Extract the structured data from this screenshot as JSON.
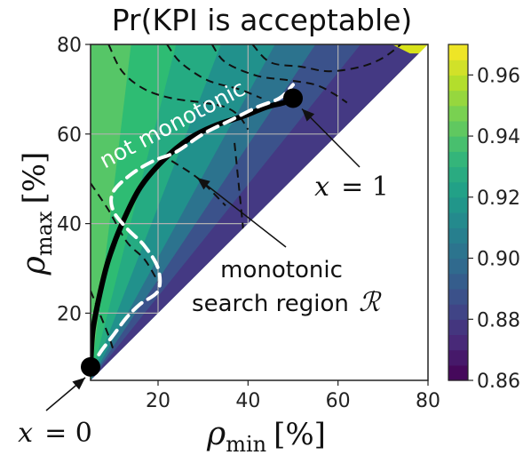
{
  "chart_data": {
    "type": "heatmap",
    "title": "Pr(KPI is acceptable)",
    "xlabel": {
      "symbol": "ρ",
      "subscript": "min",
      "unit": "[%]"
    },
    "ylabel": {
      "symbol": "ρ",
      "subscript": "max",
      "unit": "[%]"
    },
    "xlim": [
      5,
      80
    ],
    "ylim": [
      5,
      80
    ],
    "x_ticks": [
      "20",
      "40",
      "60",
      "80"
    ],
    "y_ticks": [
      "20",
      "40",
      "60",
      "80"
    ],
    "x_tick_values": [
      20,
      40,
      60,
      80
    ],
    "y_tick_values": [
      20,
      40,
      60,
      80
    ],
    "grid": true,
    "colorbar": {
      "ticks": [
        "0.86",
        "0.88",
        "0.90",
        "0.92",
        "0.94",
        "0.96"
      ],
      "tick_values": [
        0.86,
        0.88,
        0.9,
        0.92,
        0.94,
        0.96
      ],
      "range": [
        0.86,
        0.97
      ],
      "colormap": "viridis"
    },
    "contour_levels": [
      0.86,
      0.87,
      0.88,
      0.89,
      0.9,
      0.91,
      0.92,
      0.93,
      0.94,
      0.95,
      0.96,
      0.97
    ],
    "contour_bands": [
      {
        "level": 0.96,
        "color": "#b5de2b",
        "points": [
          [
            5,
            48
          ],
          [
            7,
            40
          ],
          [
            9,
            33
          ],
          [
            12,
            26
          ],
          [
            15,
            18
          ],
          [
            13,
            16
          ],
          [
            10,
            13
          ],
          [
            7,
            10
          ],
          [
            5,
            7
          ]
        ]
      },
      {
        "level": 0.95,
        "color": "#80d34b",
        "points": [
          [
            5,
            78
          ],
          [
            7,
            72
          ],
          [
            10,
            65
          ],
          [
            12,
            56
          ],
          [
            15,
            46
          ],
          [
            18,
            38
          ],
          [
            22,
            30
          ],
          [
            26,
            27
          ],
          [
            24,
            24
          ],
          [
            15,
            15
          ],
          [
            5,
            5
          ]
        ]
      },
      {
        "level": 0.94,
        "color": "#56c667",
        "points": [
          [
            5,
            80
          ],
          [
            14,
            80
          ],
          [
            17,
            74
          ],
          [
            21,
            66
          ],
          [
            26,
            58
          ],
          [
            31,
            49
          ],
          [
            35,
            42
          ],
          [
            36,
            36
          ],
          [
            5,
            5
          ]
        ]
      },
      {
        "level": 0.93,
        "color": "#2ebc73",
        "points": [
          [
            14,
            80
          ],
          [
            24,
            80
          ],
          [
            27,
            75
          ],
          [
            31,
            69
          ],
          [
            36,
            62
          ],
          [
            41,
            55
          ],
          [
            45,
            50
          ],
          [
            46,
            46
          ],
          [
            5,
            5
          ]
        ]
      },
      {
        "level": 0.92,
        "color": "#25ab82",
        "points": [
          [
            24,
            80
          ],
          [
            34,
            80
          ],
          [
            37,
            74
          ],
          [
            42,
            68
          ],
          [
            47,
            62
          ],
          [
            52,
            57
          ],
          [
            55,
            55
          ],
          [
            5,
            5
          ]
        ]
      },
      {
        "level": 0.91,
        "color": "#21918c",
        "points": [
          [
            34,
            80
          ],
          [
            46,
            80
          ],
          [
            49,
            76
          ],
          [
            53,
            71
          ],
          [
            58,
            66
          ],
          [
            62,
            62
          ],
          [
            5,
            5
          ]
        ]
      },
      {
        "level": 0.9,
        "color": "#2c738e",
        "points": [
          [
            46,
            80
          ],
          [
            55,
            80
          ],
          [
            58,
            77
          ],
          [
            62,
            73
          ],
          [
            67,
            71
          ],
          [
            69,
            69
          ],
          [
            5,
            5
          ]
        ]
      },
      {
        "level": 0.89,
        "color": "#3b528b",
        "points": [
          [
            55,
            80
          ],
          [
            65,
            80
          ],
          [
            68,
            78
          ],
          [
            72,
            76
          ],
          [
            74,
            74
          ],
          [
            5,
            5
          ]
        ]
      },
      {
        "level": 0.88,
        "color": "#443983",
        "points": [
          [
            65,
            80
          ],
          [
            72,
            80
          ],
          [
            76,
            78
          ],
          [
            78,
            78
          ],
          [
            5,
            5
          ]
        ]
      }
    ],
    "dashed_contours": [
      {
        "points": [
          [
            9,
            80
          ],
          [
            12,
            74
          ],
          [
            17,
            70
          ],
          [
            23,
            68
          ],
          [
            30,
            67
          ],
          [
            35,
            66
          ],
          [
            38,
            64
          ],
          [
            40,
            61
          ]
        ]
      },
      {
        "points": [
          [
            22,
            80
          ],
          [
            25,
            76
          ],
          [
            31,
            72
          ],
          [
            38,
            70
          ],
          [
            43,
            68
          ]
        ]
      },
      {
        "points": [
          [
            32,
            80
          ],
          [
            35,
            76
          ],
          [
            42,
            73
          ],
          [
            49,
            72
          ],
          [
            55,
            71
          ],
          [
            59,
            69
          ],
          [
            62,
            67
          ]
        ]
      },
      {
        "points": [
          [
            41,
            80
          ],
          [
            45,
            76
          ],
          [
            52,
            75
          ],
          [
            58,
            74
          ],
          [
            65,
            75
          ],
          [
            70,
            77
          ],
          [
            74,
            80
          ]
        ]
      },
      {
        "points": [
          [
            23,
            54
          ],
          [
            29,
            50
          ],
          [
            35,
            44
          ]
        ]
      },
      {
        "points": [
          [
            37,
            58
          ],
          [
            38,
            48
          ],
          [
            39,
            38
          ]
        ]
      },
      {
        "points": [
          [
            5,
            49
          ],
          [
            9,
            43
          ],
          [
            13,
            36
          ],
          [
            17,
            32
          ],
          [
            20,
            27
          ]
        ]
      },
      {
        "points": [
          [
            5,
            25
          ],
          [
            7,
            20
          ],
          [
            9,
            15
          ],
          [
            10,
            12
          ]
        ]
      }
    ],
    "series": [
      {
        "name": "monotonic search region R",
        "style": "solid",
        "color": "#000000",
        "x": [
          5,
          5.5,
          7,
          9,
          12,
          16,
          21,
          27,
          33,
          39,
          44,
          48,
          50
        ],
        "y": [
          8,
          16,
          24,
          32,
          40,
          48,
          54,
          59,
          62,
          64,
          66,
          67,
          68
        ]
      },
      {
        "name": "not monotonic",
        "style": "dashed",
        "color": "#ffffff",
        "x": [
          5,
          7,
          10,
          13,
          16,
          20,
          20,
          17,
          13,
          10,
          10,
          14,
          19,
          24,
          30,
          36,
          42,
          47,
          50
        ],
        "y": [
          7,
          11,
          15,
          19,
          22,
          25,
          30,
          35,
          39,
          43,
          47,
          51,
          54,
          56,
          60,
          63,
          66,
          68,
          71
        ]
      }
    ],
    "markers": [
      {
        "x": 5,
        "y": 8,
        "label": "x = 0"
      },
      {
        "x": 50,
        "y": 68,
        "label": "x = 1"
      }
    ],
    "annotations": {
      "not_monotonic": "not monotonic",
      "monotonic_line1": "monotonic",
      "monotonic_line2": "search region",
      "region_symbol": "ℛ",
      "x0_var": "x",
      "x0_eq": "= 0",
      "x1_var": "x",
      "x1_eq": "= 1"
    },
    "colors": {
      "plot_fill_base": "#d8e219",
      "grid": "#b0b0b0",
      "empty_region": "#ffffff",
      "viridis": [
        "#440154",
        "#482878",
        "#3e4989",
        "#31688e",
        "#26828e",
        "#1f9e89",
        "#35b779",
        "#6ece58",
        "#b5de2b",
        "#fde725"
      ]
    }
  }
}
